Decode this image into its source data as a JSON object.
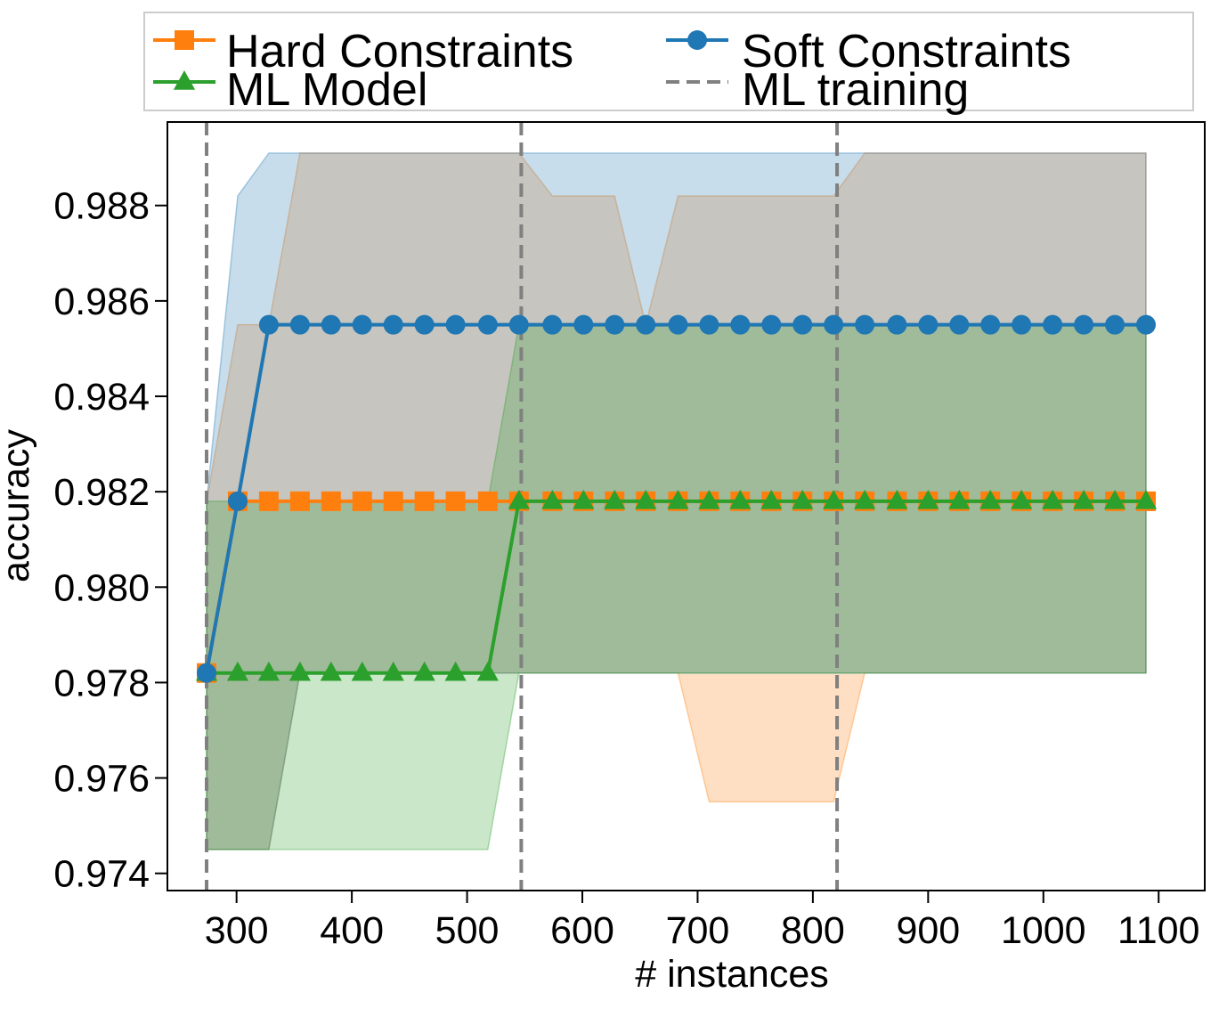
{
  "chart_data": {
    "type": "line",
    "title": "",
    "xlabel": "# instances",
    "ylabel": "accuracy",
    "xlim": [
      240,
      1140
    ],
    "ylim": [
      0.97364,
      0.98975
    ],
    "xticks": [
      300,
      400,
      500,
      600,
      700,
      800,
      900,
      1000,
      1100
    ],
    "xtick_labels": [
      "300",
      "400",
      "500",
      "600",
      "700",
      "800",
      "900",
      "1000",
      "1100"
    ],
    "yticks": [
      0.974,
      0.976,
      0.978,
      0.98,
      0.982,
      0.984,
      0.986,
      0.988
    ],
    "ytick_labels": [
      "0.974",
      "0.976",
      "0.978",
      "0.980",
      "0.982",
      "0.984",
      "0.986",
      "0.988"
    ],
    "grid": false,
    "legend": {
      "placement": "top",
      "columns": 2,
      "entries": [
        {
          "label": "Hard Constraints",
          "color": "#ff7f0e",
          "marker": "square",
          "linestyle": "solid"
        },
        {
          "label": "Soft Constraints",
          "color": "#1f77b4",
          "marker": "circle",
          "linestyle": "solid"
        },
        {
          "label": "ML Model",
          "color": "#2ca02c",
          "marker": "triangle",
          "linestyle": "solid"
        },
        {
          "label": "ML training",
          "color": "#808080",
          "marker": "none",
          "linestyle": "dashed"
        }
      ]
    },
    "vlines": {
      "label": "ML training",
      "color": "#808080",
      "x": [
        274,
        547,
        821
      ]
    },
    "x": [
      274,
      301,
      328,
      355,
      382,
      409,
      436,
      463,
      490,
      518,
      545,
      574,
      601,
      628,
      655,
      683,
      710,
      737,
      764,
      791,
      818,
      845,
      873,
      900,
      927,
      954,
      981,
      1008,
      1035,
      1062,
      1089
    ],
    "series": [
      {
        "name": "Hard Constraints",
        "color": "#ff7f0e",
        "marker": "square",
        "values": [
          0.9782,
          0.9818,
          0.9818,
          0.9818,
          0.9818,
          0.9818,
          0.9818,
          0.9818,
          0.9818,
          0.9818,
          0.9818,
          0.9818,
          0.9818,
          0.9818,
          0.9818,
          0.9818,
          0.9818,
          0.9818,
          0.9818,
          0.9818,
          0.9818,
          0.9818,
          0.9818,
          0.9818,
          0.9818,
          0.9818,
          0.9818,
          0.9818,
          0.9818,
          0.9818,
          0.9818
        ],
        "band": {
          "upper": [
            0.9818,
            0.9855,
            0.9855,
            0.9891,
            0.9891,
            0.9891,
            0.9891,
            0.9891,
            0.9891,
            0.9891,
            0.9891,
            0.9882,
            0.9882,
            0.9882,
            0.9855,
            0.9882,
            0.9882,
            0.9882,
            0.9882,
            0.9882,
            0.9882,
            0.9891,
            0.9891,
            0.9891,
            0.9891,
            0.9891,
            0.9891,
            0.9891,
            0.9891,
            0.9891,
            0.9891
          ],
          "lower": [
            0.9745,
            0.9745,
            0.9745,
            0.9782,
            0.9782,
            0.9782,
            0.9782,
            0.9782,
            0.9782,
            0.9782,
            0.9782,
            0.9782,
            0.9782,
            0.9782,
            0.9782,
            0.9782,
            0.9755,
            0.9755,
            0.9755,
            0.9755,
            0.9755,
            0.9782,
            0.9782,
            0.9782,
            0.9782,
            0.9782,
            0.9782,
            0.9782,
            0.9782,
            0.9782,
            0.9782
          ]
        }
      },
      {
        "name": "Soft Constraints",
        "color": "#1f77b4",
        "marker": "circle",
        "values": [
          0.9782,
          0.9818,
          0.9855,
          0.9855,
          0.9855,
          0.9855,
          0.9855,
          0.9855,
          0.9855,
          0.9855,
          0.9855,
          0.9855,
          0.9855,
          0.9855,
          0.9855,
          0.9855,
          0.9855,
          0.9855,
          0.9855,
          0.9855,
          0.9855,
          0.9855,
          0.9855,
          0.9855,
          0.9855,
          0.9855,
          0.9855,
          0.9855,
          0.9855,
          0.9855,
          0.9855
        ],
        "band": {
          "upper": [
            0.9818,
            0.9882,
            0.9891,
            0.9891,
            0.9891,
            0.9891,
            0.9891,
            0.9891,
            0.9891,
            0.9891,
            0.9891,
            0.9891,
            0.9891,
            0.9891,
            0.9891,
            0.9891,
            0.9891,
            0.9891,
            0.9891,
            0.9891,
            0.9891,
            0.9891,
            0.9891,
            0.9891,
            0.9891,
            0.9891,
            0.9891,
            0.9891,
            0.9891,
            0.9891,
            0.9891
          ],
          "lower": [
            0.9745,
            0.9745,
            0.9745,
            0.9782,
            0.9782,
            0.9782,
            0.9782,
            0.9782,
            0.9782,
            0.9782,
            0.9782,
            0.9782,
            0.9782,
            0.9782,
            0.9782,
            0.9782,
            0.9782,
            0.9782,
            0.9782,
            0.9782,
            0.9782,
            0.9782,
            0.9782,
            0.9782,
            0.9782,
            0.9782,
            0.9782,
            0.9782,
            0.9782,
            0.9782,
            0.9782
          ]
        }
      },
      {
        "name": "ML Model",
        "color": "#2ca02c",
        "marker": "triangle",
        "values": [
          0.9782,
          0.9782,
          0.9782,
          0.9782,
          0.9782,
          0.9782,
          0.9782,
          0.9782,
          0.9782,
          0.9782,
          0.9818,
          0.9818,
          0.9818,
          0.9818,
          0.9818,
          0.9818,
          0.9818,
          0.9818,
          0.9818,
          0.9818,
          0.9818,
          0.9818,
          0.9818,
          0.9818,
          0.9818,
          0.9818,
          0.9818,
          0.9818,
          0.9818,
          0.9818,
          0.9818
        ],
        "band": {
          "upper": [
            0.9818,
            0.9818,
            0.9818,
            0.9818,
            0.9818,
            0.9818,
            0.9818,
            0.9818,
            0.9818,
            0.9818,
            0.9855,
            0.9855,
            0.9855,
            0.9855,
            0.9855,
            0.9855,
            0.9855,
            0.9855,
            0.9855,
            0.9855,
            0.9855,
            0.9855,
            0.9855,
            0.9855,
            0.9855,
            0.9855,
            0.9855,
            0.9855,
            0.9855,
            0.9855,
            0.9855
          ],
          "lower": [
            0.9745,
            0.9745,
            0.9745,
            0.9745,
            0.9745,
            0.9745,
            0.9745,
            0.9745,
            0.9745,
            0.9745,
            0.9782,
            0.9782,
            0.9782,
            0.9782,
            0.9782,
            0.9782,
            0.9782,
            0.9782,
            0.9782,
            0.9782,
            0.9782,
            0.9782,
            0.9782,
            0.9782,
            0.9782,
            0.9782,
            0.9782,
            0.9782,
            0.9782,
            0.9782,
            0.9782
          ]
        }
      }
    ]
  }
}
